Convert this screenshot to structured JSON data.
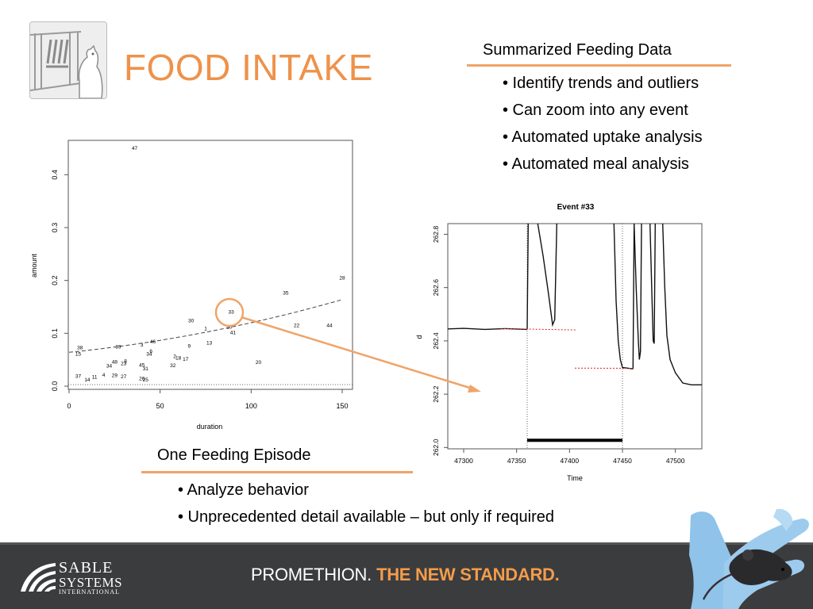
{
  "slide": {
    "title": "FOOD INTAKE",
    "summary": {
      "heading": "Summarized Feeding Data",
      "bullets": [
        "• Identify trends and outliers",
        "• Can zoom into any event",
        "• Automated uptake analysis",
        "• Automated meal analysis"
      ]
    },
    "episode": {
      "heading": "One Feeding Episode",
      "bullets": [
        "• Analyze behavior",
        "• Unprecedented detail available – but only if required"
      ]
    }
  },
  "footer": {
    "brand_line1": "SABLE",
    "brand_line2": "SYSTEMS",
    "brand_line3": "INTERNATIONAL",
    "tagline_part1": "PROMETHION.",
    "tagline_part2": "THE NEW STANDARD."
  },
  "colors": {
    "accent": "#ee924a",
    "footer_bg": "#3b3c3e",
    "tagline_accent": "#f39c4a",
    "highlight_circle": "#f0a469"
  },
  "icons": [
    "mouse-cage-logo",
    "sable-wave-logo",
    "gloved-hand-mouse-photo"
  ],
  "chart_data": [
    {
      "type": "scatter",
      "title": "",
      "xlabel": "duration",
      "ylabel": "amount",
      "xlim": [
        0,
        150
      ],
      "ylim": [
        0,
        0.45
      ],
      "xticks": [
        0,
        50,
        100,
        150
      ],
      "yticks": [
        0.0,
        0.1,
        0.2,
        0.3,
        0.4
      ],
      "point_labels_are_event_numbers": true,
      "points": [
        {
          "label": "47",
          "x": 36,
          "y": 0.45
        },
        {
          "label": "28",
          "x": 150,
          "y": 0.205
        },
        {
          "label": "35",
          "x": 119,
          "y": 0.176
        },
        {
          "label": "33",
          "x": 89,
          "y": 0.14
        },
        {
          "label": "30",
          "x": 67,
          "y": 0.124
        },
        {
          "label": "1",
          "x": 75,
          "y": 0.109
        },
        {
          "label": "10",
          "x": 88,
          "y": 0.112
        },
        {
          "label": "22",
          "x": 125,
          "y": 0.115
        },
        {
          "label": "44",
          "x": 143,
          "y": 0.115
        },
        {
          "label": "41",
          "x": 90,
          "y": 0.101
        },
        {
          "label": "13",
          "x": 77,
          "y": 0.082
        },
        {
          "label": "46",
          "x": 46,
          "y": 0.084
        },
        {
          "label": "9",
          "x": 66,
          "y": 0.076
        },
        {
          "label": "3",
          "x": 40,
          "y": 0.078
        },
        {
          "label": "39",
          "x": 27,
          "y": 0.074
        },
        {
          "label": "38",
          "x": 6,
          "y": 0.073
        },
        {
          "label": "15",
          "x": 5,
          "y": 0.061
        },
        {
          "label": "6",
          "x": 45,
          "y": 0.066
        },
        {
          "label": "34",
          "x": 44,
          "y": 0.061
        },
        {
          "label": "2",
          "x": 58,
          "y": 0.056
        },
        {
          "label": "18",
          "x": 60,
          "y": 0.053
        },
        {
          "label": "17",
          "x": 64,
          "y": 0.051
        },
        {
          "label": "20",
          "x": 104,
          "y": 0.045
        },
        {
          "label": "48",
          "x": 25,
          "y": 0.046
        },
        {
          "label": "8",
          "x": 31,
          "y": 0.047
        },
        {
          "label": "23",
          "x": 30,
          "y": 0.043
        },
        {
          "label": "34",
          "x": 22,
          "y": 0.038
        },
        {
          "label": "45",
          "x": 40,
          "y": 0.04
        },
        {
          "label": "32",
          "x": 57,
          "y": 0.039
        },
        {
          "label": "31",
          "x": 42,
          "y": 0.033
        },
        {
          "label": "29",
          "x": 25,
          "y": 0.02
        },
        {
          "label": "27",
          "x": 30,
          "y": 0.018
        },
        {
          "label": "4",
          "x": 19,
          "y": 0.021
        },
        {
          "label": "11",
          "x": 14,
          "y": 0.017
        },
        {
          "label": "37",
          "x": 5,
          "y": 0.019
        },
        {
          "label": "14",
          "x": 10,
          "y": 0.012
        },
        {
          "label": "26",
          "x": 40,
          "y": 0.014
        },
        {
          "label": "25",
          "x": 42,
          "y": 0.012
        }
      ],
      "trend_curve": {
        "style": "dashed",
        "x": [
          0,
          50,
          100,
          150
        ],
        "y": [
          0.064,
          0.086,
          0.118,
          0.163
        ]
      },
      "baseline": {
        "style": "dotted",
        "y": 0.003
      },
      "highlighted_point": "33"
    },
    {
      "type": "line",
      "title": "Event #33",
      "xlabel": "Time",
      "ylabel": "d",
      "xlim": [
        47285,
        47525
      ],
      "ylim": [
        261.995,
        262.84
      ],
      "xticks": [
        47300,
        47350,
        47400,
        47450,
        47500
      ],
      "yticks": [
        262.0,
        262.2,
        262.4,
        262.6,
        262.8
      ],
      "series": [
        {
          "style": "solid-black",
          "segments": [
            [
              [
                47285,
                262.445
              ],
              [
                47300,
                262.447
              ],
              [
                47320,
                262.443
              ],
              [
                47340,
                262.446
              ],
              [
                47360,
                262.443
              ]
            ],
            [
              [
                47360,
                262.443
              ],
              [
                47361,
                262.84
              ]
            ],
            [
              [
                47370,
                262.84
              ],
              [
                47375,
                262.72
              ],
              [
                47380,
                262.58
              ],
              [
                47384,
                262.46
              ],
              [
                47386,
                262.48
              ],
              [
                47388,
                262.84
              ]
            ],
            [
              [
                47442,
                262.84
              ],
              [
                47444,
                262.55
              ],
              [
                47446,
                262.4
              ],
              [
                47448,
                262.33
              ],
              [
                47450,
                262.3
              ],
              [
                47460,
                262.295
              ]
            ],
            [
              [
                47460,
                262.295
              ],
              [
                47461,
                262.84
              ]
            ],
            [
              [
                47461,
                262.84
              ],
              [
                47463,
                262.6
              ],
              [
                47465,
                262.4
              ],
              [
                47466,
                262.33
              ],
              [
                47467,
                262.36
              ],
              [
                47468,
                262.84
              ]
            ],
            [
              [
                47476,
                262.84
              ],
              [
                47478,
                262.55
              ],
              [
                47479,
                262.4
              ],
              [
                47480,
                262.39
              ],
              [
                47481,
                262.84
              ]
            ],
            [
              [
                47488,
                262.84
              ],
              [
                47490,
                262.6
              ],
              [
                47492,
                262.42
              ],
              [
                47495,
                262.33
              ],
              [
                47500,
                262.28
              ],
              [
                47507,
                262.242
              ],
              [
                47515,
                262.235
              ],
              [
                47525,
                262.235
              ]
            ]
          ]
        },
        {
          "style": "red-dotted-reference",
          "segments": [
            [
              [
                47335,
                262.446
              ],
              [
                47406,
                262.441
              ]
            ],
            [
              [
                47405,
                262.298
              ],
              [
                47460,
                262.297
              ]
            ]
          ]
        }
      ],
      "vertical_markers": [
        47360,
        47450
      ],
      "episode_bar": {
        "x_start": 47360,
        "x_end": 47450,
        "y": 262.027
      }
    }
  ]
}
